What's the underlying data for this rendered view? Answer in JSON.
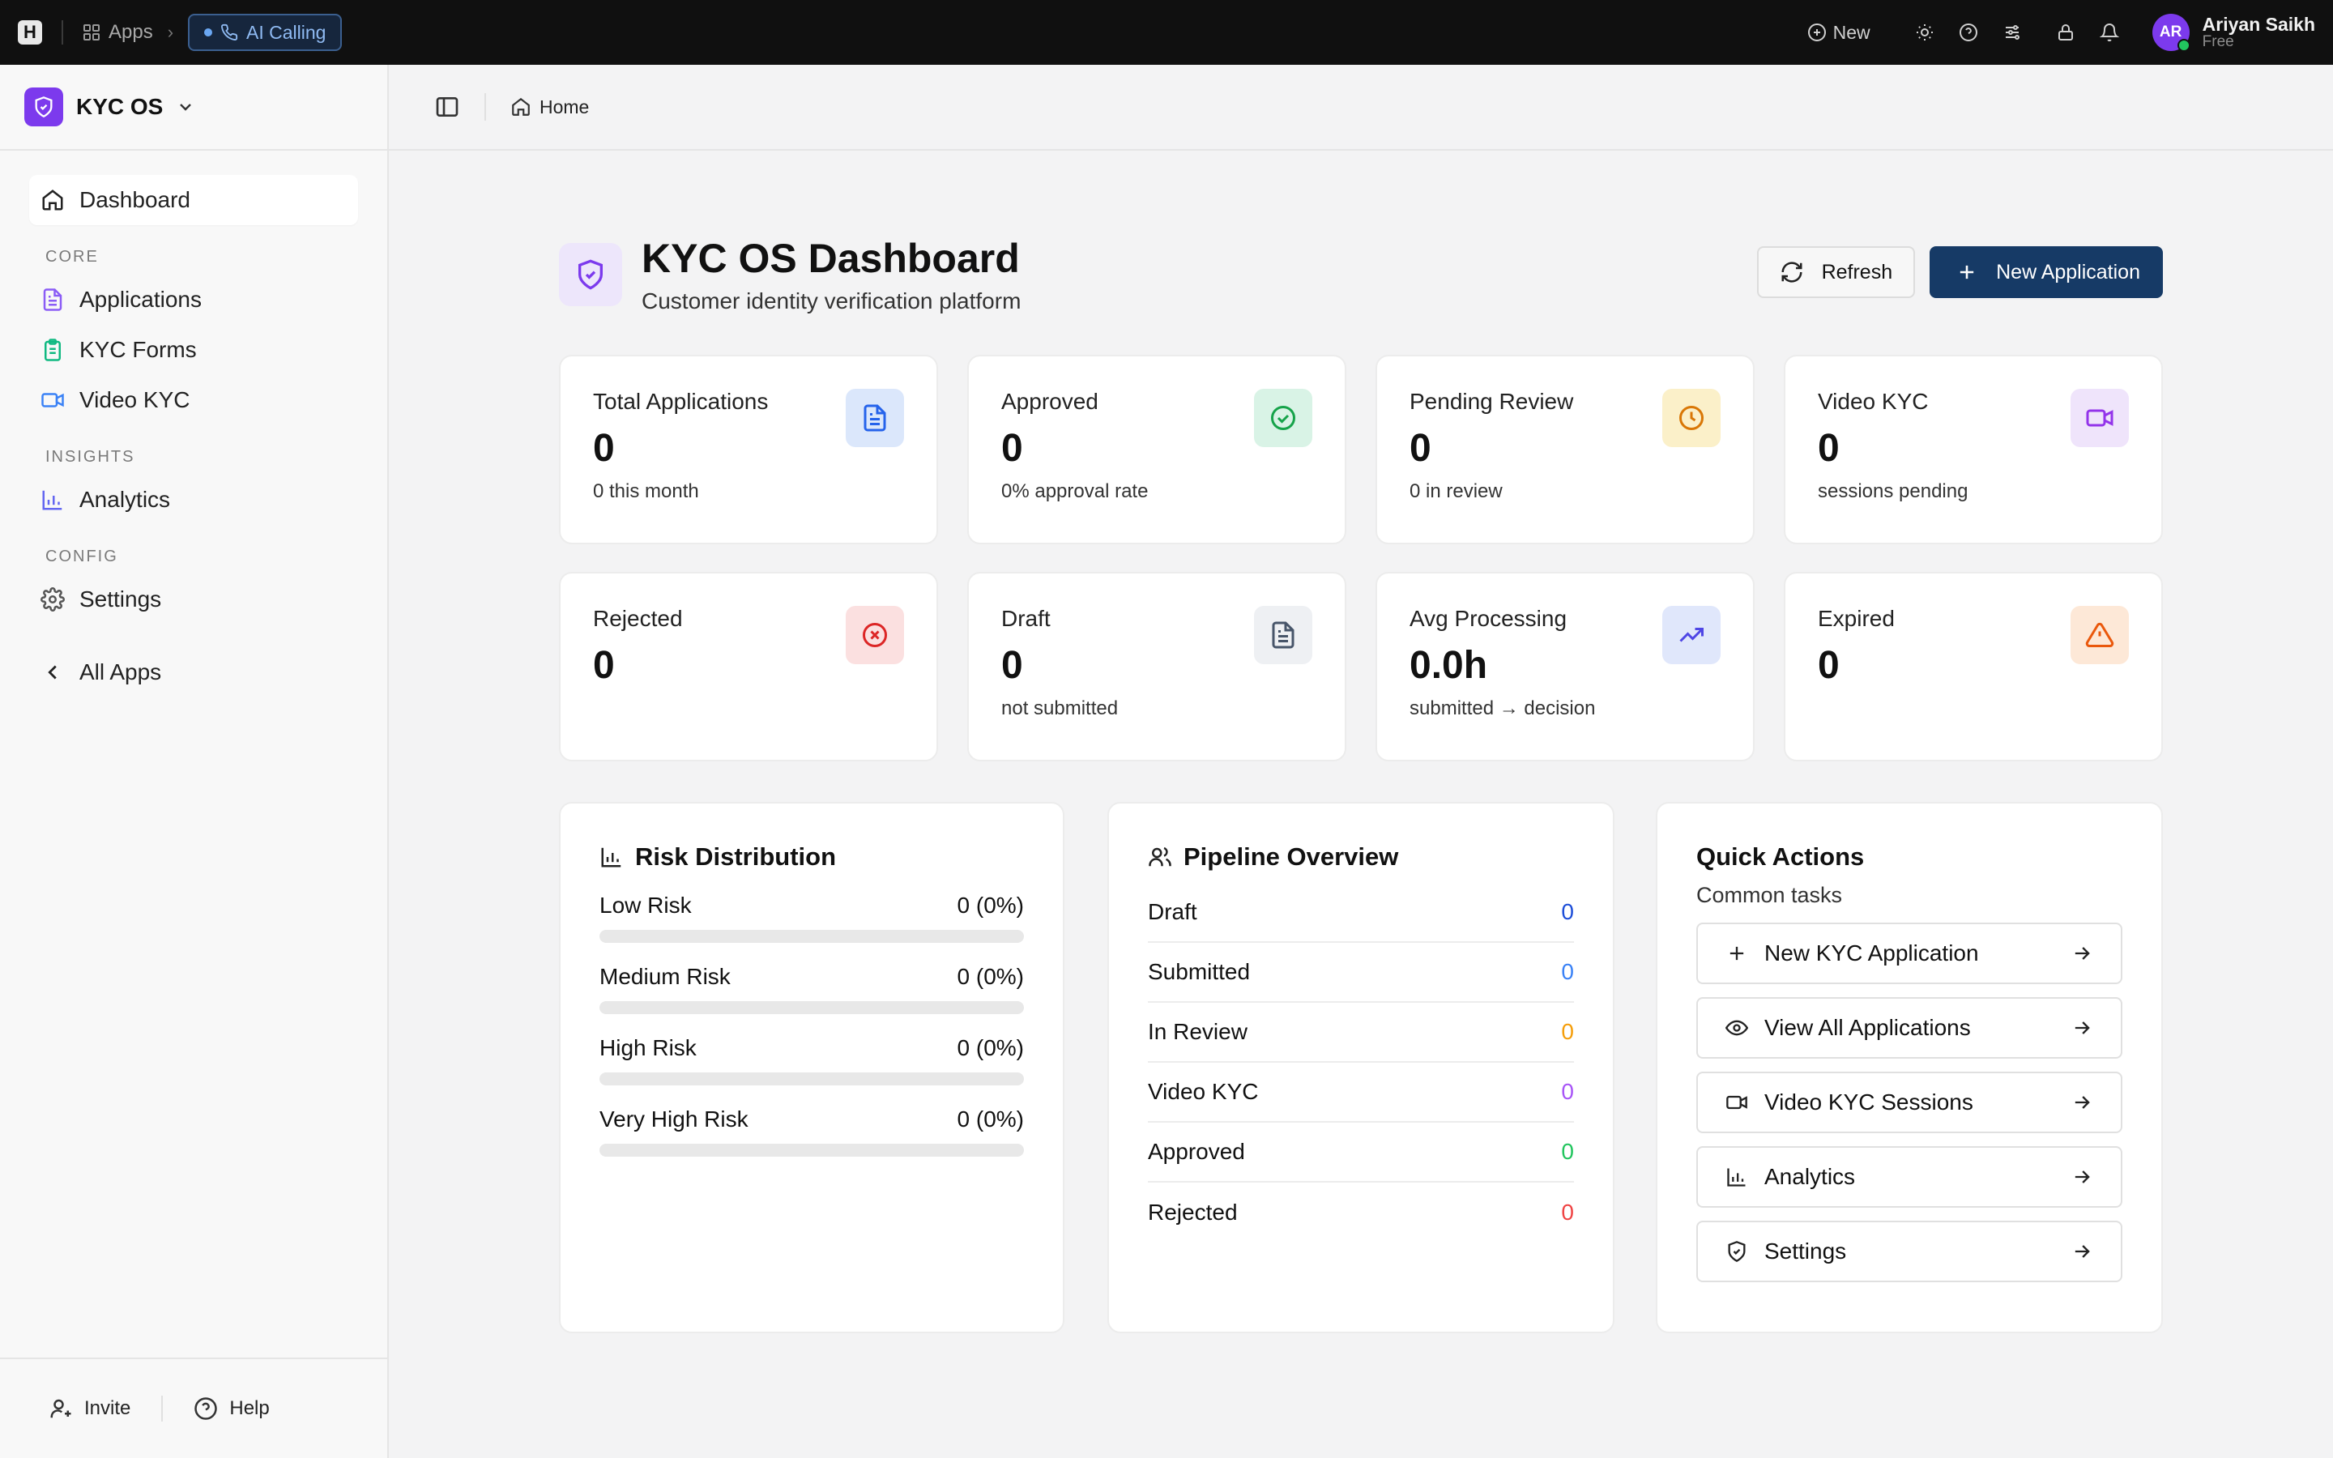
{
  "topbar": {
    "apps_label": "Apps",
    "context_label": "AI Calling",
    "new_label": "New",
    "user_initials": "AR",
    "user_name": "Ariyan Saikh",
    "user_plan": "Free"
  },
  "sidebar": {
    "app_name": "KYC OS",
    "dashboard": "Dashboard",
    "section_core": "CORE",
    "applications": "Applications",
    "kyc_forms": "KYC Forms",
    "video_kyc": "Video KYC",
    "section_insights": "INSIGHTS",
    "analytics": "Analytics",
    "section_config": "CONFIG",
    "settings": "Settings",
    "all_apps": "All Apps",
    "invite": "Invite",
    "help": "Help"
  },
  "breadcrumb": {
    "home": "Home"
  },
  "header": {
    "title": "KYC OS Dashboard",
    "subtitle": "Customer identity verification platform",
    "refresh_label": "Refresh",
    "new_application_label": "New Application"
  },
  "stats": {
    "total": {
      "label": "Total Applications",
      "value": "0",
      "sub": "0 this month"
    },
    "approved": {
      "label": "Approved",
      "value": "0",
      "sub": "0% approval rate"
    },
    "pending": {
      "label": "Pending Review",
      "value": "0",
      "sub": "0 in review"
    },
    "video": {
      "label": "Video KYC",
      "value": "0",
      "sub": "sessions pending"
    },
    "rejected": {
      "label": "Rejected",
      "value": "0"
    },
    "draft": {
      "label": "Draft",
      "value": "0",
      "sub": "not submitted"
    },
    "avg": {
      "label": "Avg Processing",
      "value": "0.0h",
      "sub": "submitted → decision"
    },
    "expired": {
      "label": "Expired",
      "value": "0"
    }
  },
  "risk": {
    "title": "Risk Distribution",
    "rows": [
      {
        "label": "Low Risk",
        "value": "0 (0%)",
        "fraction": 0
      },
      {
        "label": "Medium Risk",
        "value": "0 (0%)",
        "fraction": 0
      },
      {
        "label": "High Risk",
        "value": "0 (0%)",
        "fraction": 0
      },
      {
        "label": "Very High Risk",
        "value": "0 (0%)",
        "fraction": 0
      }
    ]
  },
  "pipeline": {
    "title": "Pipeline Overview",
    "rows": [
      {
        "label": "Draft",
        "value": "0",
        "color": "#1d4ed8"
      },
      {
        "label": "Submitted",
        "value": "0",
        "color": "#3b82f6"
      },
      {
        "label": "In Review",
        "value": "0",
        "color": "#f59e0b"
      },
      {
        "label": "Video KYC",
        "value": "0",
        "color": "#a855f7"
      },
      {
        "label": "Approved",
        "value": "0",
        "color": "#22c55e"
      },
      {
        "label": "Rejected",
        "value": "0",
        "color": "#ef4444"
      }
    ]
  },
  "quick_actions": {
    "title": "Quick Actions",
    "subtitle": "Common tasks",
    "items": [
      {
        "label": "New KYC Application",
        "icon": "plus-icon"
      },
      {
        "label": "View All Applications",
        "icon": "eye-icon"
      },
      {
        "label": "Video KYC Sessions",
        "icon": "video-icon"
      },
      {
        "label": "Analytics",
        "icon": "bar-chart-icon"
      },
      {
        "label": "Settings",
        "icon": "shield-icon"
      }
    ]
  },
  "colors": {
    "primary": "#163a66",
    "accent_purple": "#7c3aed"
  }
}
